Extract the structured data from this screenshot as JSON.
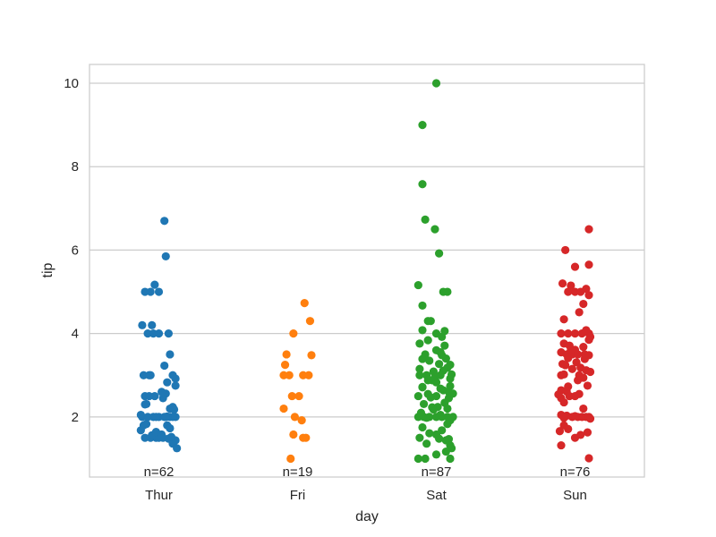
{
  "chart_data": {
    "type": "scatter",
    "subtype": "stripplot",
    "title": "",
    "xlabel": "day",
    "ylabel": "tip",
    "categories": [
      "Thur",
      "Fri",
      "Sat",
      "Sun"
    ],
    "colors": [
      "#1f77b4",
      "#ff7f0e",
      "#2ca02c",
      "#d62728"
    ],
    "counts": [
      62,
      19,
      87,
      76
    ],
    "count_labels": [
      "n=62",
      "n=19",
      "n=87",
      "n=76"
    ],
    "yticks": [
      2,
      4,
      6,
      8,
      10
    ],
    "ytick_labels": [
      "2",
      "4",
      "6",
      "8",
      "10"
    ],
    "ylim": [
      0.56,
      10.45
    ],
    "grid": "horizontal",
    "legend": null,
    "series": [
      {
        "name": "Thur",
        "values": [
          6.7,
          5.85,
          5.17,
          5.0,
          5.0,
          5.0,
          4.2,
          4.2,
          4.0,
          4.0,
          4.0,
          4.0,
          3.5,
          3.23,
          3.0,
          3.0,
          3.0,
          2.92,
          2.83,
          2.75,
          2.56,
          2.5,
          2.5,
          2.45,
          2.3,
          2.2,
          2.0,
          2.0,
          2.0,
          2.0,
          2.0,
          2.0,
          2.0,
          2.0,
          2.0,
          1.83,
          1.8,
          1.68,
          1.58,
          1.5,
          1.5,
          1.5,
          1.5,
          1.48,
          1.44,
          1.36,
          1.25,
          1.56,
          2.01,
          2.24,
          2.6,
          3.0,
          1.73,
          2.05,
          2.31,
          1.5,
          1.52,
          2.0,
          1.8,
          2.18,
          2.5,
          1.64
        ],
        "jitter": [
          0.04,
          0.05,
          -0.03,
          -0.06,
          -0.1,
          0.0,
          -0.12,
          -0.05,
          -0.08,
          0.0,
          -0.04,
          0.07,
          0.08,
          0.04,
          -0.11,
          -0.07,
          0.1,
          0.12,
          0.06,
          0.12,
          0.05,
          -0.1,
          -0.03,
          0.03,
          -0.1,
          0.08,
          -0.12,
          -0.08,
          -0.04,
          0.0,
          0.04,
          0.08,
          0.12,
          -0.02,
          0.1,
          -0.09,
          0.06,
          -0.13,
          0.02,
          -0.1,
          -0.06,
          -0.02,
          0.03,
          0.07,
          0.12,
          0.1,
          0.13,
          -0.05,
          0.06,
          0.1,
          0.02,
          -0.06,
          0.08,
          -0.13,
          -0.09,
          0.0,
          0.09,
          0.05,
          -0.11,
          0.11,
          -0.07,
          -0.02
        ]
      },
      {
        "name": "Fri",
        "values": [
          4.73,
          4.3,
          4.0,
          3.5,
          3.48,
          3.25,
          3.0,
          3.0,
          3.0,
          3.0,
          2.5,
          2.5,
          2.2,
          2.0,
          1.92,
          1.58,
          1.5,
          1.5,
          1.0
        ],
        "jitter": [
          0.05,
          0.09,
          -0.03,
          -0.08,
          0.1,
          -0.09,
          -0.1,
          -0.06,
          0.04,
          0.08,
          -0.04,
          0.01,
          -0.1,
          -0.02,
          0.03,
          -0.03,
          0.04,
          0.06,
          -0.05
        ]
      },
      {
        "name": "Sat",
        "values": [
          10.0,
          9.0,
          7.58,
          6.73,
          6.5,
          5.92,
          5.16,
          5.0,
          5.0,
          4.67,
          4.3,
          4.3,
          4.08,
          4.06,
          4.0,
          3.92,
          3.76,
          3.6,
          3.5,
          3.48,
          3.39,
          3.35,
          3.27,
          3.18,
          3.15,
          3.11,
          3.09,
          3.0,
          3.0,
          3.0,
          2.92,
          2.88,
          2.83,
          2.72,
          2.64,
          2.6,
          2.55,
          2.5,
          2.5,
          2.47,
          2.34,
          2.31,
          2.24,
          2.2,
          2.18,
          2.05,
          2.0,
          2.0,
          2.0,
          2.0,
          2.0,
          2.0,
          2.0,
          1.92,
          1.75,
          1.68,
          1.61,
          1.5,
          1.48,
          1.47,
          1.44,
          1.36,
          1.32,
          1.25,
          1.1,
          1.0,
          1.0,
          1.0,
          1.17,
          2.74,
          3.55,
          2.88,
          2.1,
          1.83,
          3.71,
          3.84,
          2.23,
          3.02,
          2.68,
          2.95,
          2.45,
          1.98,
          3.25,
          1.58,
          2.56,
          2.71,
          3.4
        ],
        "jitter": [
          0.0,
          -0.1,
          -0.1,
          -0.08,
          -0.01,
          0.02,
          -0.13,
          0.05,
          0.08,
          -0.1,
          -0.06,
          -0.04,
          -0.1,
          0.06,
          0.0,
          0.04,
          -0.12,
          0.0,
          -0.08,
          0.04,
          -0.1,
          -0.05,
          0.02,
          0.08,
          -0.12,
          0.05,
          -0.02,
          -0.12,
          -0.07,
          0.03,
          0.1,
          -0.03,
          0.0,
          -0.1,
          0.05,
          0.09,
          -0.06,
          -0.13,
          0.0,
          -0.04,
          0.06,
          -0.09,
          0.01,
          0.08,
          -0.02,
          0.03,
          -0.13,
          -0.09,
          -0.05,
          0.0,
          0.04,
          0.08,
          0.12,
          0.1,
          -0.1,
          0.04,
          -0.05,
          -0.12,
          0.02,
          0.09,
          0.07,
          -0.07,
          0.1,
          0.11,
          0.0,
          -0.13,
          -0.08,
          0.1,
          0.07,
          0.1,
          0.03,
          -0.06,
          -0.11,
          0.08,
          0.06,
          -0.06,
          -0.03,
          0.11,
          0.03,
          -0.01,
          0.09,
          -0.07,
          0.1,
          0.0,
          0.12,
          -0.1,
          0.07
        ]
      },
      {
        "name": "Sun",
        "values": [
          6.5,
          6.0,
          5.65,
          5.6,
          5.2,
          5.15,
          5.0,
          5.0,
          5.0,
          5.07,
          4.92,
          4.71,
          4.51,
          4.34,
          4.0,
          4.0,
          4.0,
          4.0,
          4.0,
          3.92,
          3.76,
          3.71,
          3.68,
          3.61,
          3.55,
          3.5,
          3.5,
          3.5,
          3.5,
          3.48,
          3.41,
          3.31,
          3.27,
          3.18,
          3.15,
          3.12,
          3.08,
          3.02,
          3.0,
          2.94,
          2.88,
          2.75,
          2.64,
          2.61,
          2.55,
          2.5,
          2.5,
          2.45,
          2.35,
          2.05,
          2.03,
          2.0,
          2.0,
          2.0,
          2.0,
          2.0,
          1.98,
          1.96,
          1.71,
          1.66,
          1.57,
          1.5,
          1.32,
          1.01,
          3.0,
          3.39,
          2.54,
          3.85,
          3.24,
          2.2,
          2.02,
          1.8,
          1.63,
          4.08,
          3.6,
          2.73
        ],
        "jitter": [
          0.1,
          -0.07,
          0.1,
          0.0,
          -0.09,
          -0.03,
          -0.05,
          0.0,
          0.04,
          0.08,
          0.1,
          0.06,
          0.03,
          -0.08,
          -0.1,
          -0.05,
          0.0,
          0.05,
          0.1,
          0.11,
          -0.08,
          -0.04,
          0.06,
          0.0,
          -0.1,
          -0.06,
          -0.02,
          0.02,
          0.07,
          0.1,
          -0.05,
          0.01,
          -0.09,
          0.04,
          -0.02,
          0.08,
          0.11,
          -0.08,
          -0.1,
          0.06,
          0.02,
          0.09,
          -0.1,
          -0.06,
          0.03,
          -0.04,
          0.0,
          -0.1,
          -0.08,
          -0.1,
          -0.06,
          -0.02,
          0.02,
          0.05,
          0.08,
          0.1,
          -0.08,
          0.11,
          -0.05,
          -0.11,
          0.04,
          0.0,
          -0.1,
          0.1,
          0.03,
          0.07,
          -0.12,
          0.1,
          -0.07,
          0.06,
          0.0,
          -0.08,
          0.09,
          0.08,
          -0.03,
          -0.05
        ]
      }
    ]
  }
}
